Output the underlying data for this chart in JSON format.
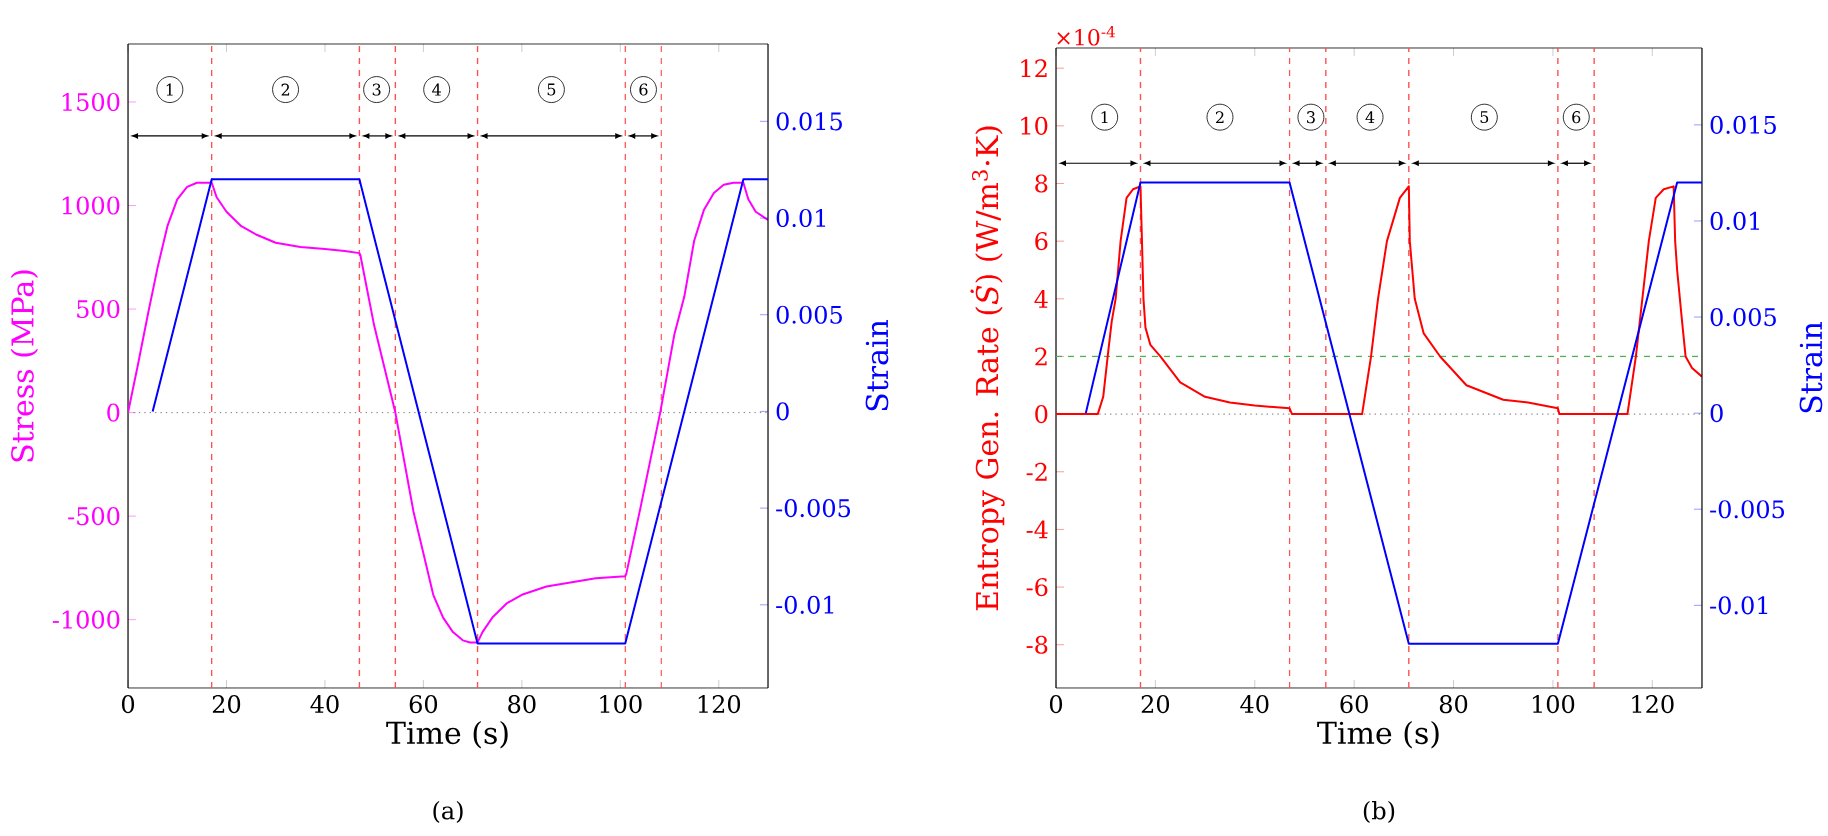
{
  "chart_data": [
    {
      "type": "line",
      "xlabel": "Time (s)",
      "ylabel": "Stress (MPa)",
      "y2label": "Strain",
      "xlim": [
        0,
        130
      ],
      "xticks": [
        0,
        20,
        40,
        60,
        80,
        100,
        120
      ],
      "ylim": [
        -1330,
        1780
      ],
      "yticks": [
        -1000,
        -500,
        0,
        500,
        1000,
        1500
      ],
      "y2lim": [
        -0.0143,
        0.019
      ],
      "y2ticks": [
        -0.01,
        -0.005,
        0,
        0.005,
        0.01,
        0.015
      ],
      "series": [
        {
          "color": "#ff00ff",
          "x": [
            0,
            2,
            4,
            6,
            8,
            10,
            12,
            14,
            16,
            17,
            18,
            20,
            23,
            26,
            30,
            35,
            40,
            44,
            47,
            47.2,
            50,
            54.3,
            58,
            62,
            64,
            66,
            68,
            69.5,
            71,
            72,
            74,
            77,
            80,
            85,
            90,
            95,
            101,
            101.2,
            104,
            108.1,
            111,
            113,
            115,
            117,
            119,
            121,
            123,
            125,
            126,
            127.5,
            130
          ],
          "values": [
            0,
            230,
            470,
            700,
            900,
            1030,
            1090,
            1110,
            1110,
            1110,
            1040,
            970,
            900,
            860,
            820,
            800,
            790,
            780,
            770,
            760,
            420,
            0,
            -480,
            -880,
            -990,
            -1060,
            -1100,
            -1110,
            -1110,
            -1060,
            -990,
            -920,
            -880,
            -840,
            -820,
            -800,
            -790,
            -780,
            -470,
            0,
            380,
            560,
            830,
            980,
            1060,
            1100,
            1110,
            1110,
            1030,
            970,
            930
          ]
        },
        {
          "color": "#0000ff",
          "axis": "y2",
          "x": [
            5,
            17,
            47,
            71,
            101,
            125,
            130
          ],
          "values": [
            0,
            0.012,
            0.012,
            -0.012,
            -0.012,
            0.012,
            0.012
          ]
        }
      ],
      "ref_lines": [
        {
          "axis": "y",
          "value": 0,
          "color": "#909090",
          "line_style": "dotted"
        },
        {
          "axis": "x",
          "value": 17,
          "color": "#ff5050",
          "line_style": "dashed"
        },
        {
          "axis": "x",
          "value": 47,
          "color": "#ff5050",
          "line_style": "dashed"
        },
        {
          "axis": "x",
          "value": 54.3,
          "color": "#ff5050",
          "line_style": "dashed"
        },
        {
          "axis": "x",
          "value": 71,
          "color": "#ff5050",
          "line_style": "dashed"
        },
        {
          "axis": "x",
          "value": 101,
          "color": "#ff5050",
          "line_style": "dashed"
        },
        {
          "axis": "x",
          "value": 108.3,
          "color": "#ff5050",
          "line_style": "dashed"
        }
      ],
      "annotations": [
        {
          "text": "1",
          "x": 8.5,
          "y": 1560
        },
        {
          "text": "2",
          "x": 32,
          "y": 1560
        },
        {
          "text": "3",
          "x": 50.5,
          "y": 1560
        },
        {
          "text": "4",
          "x": 62.7,
          "y": 1560
        },
        {
          "text": "5",
          "x": 86,
          "y": 1560
        },
        {
          "text": "6",
          "x": 104.7,
          "y": 1560
        },
        "(a)"
      ]
    },
    {
      "type": "line",
      "xlabel": "Time (s)",
      "ylabel": "Entropy Gen. Rate (*Ṡ*) (W/m$^{3}$·K)",
      "y2label": "Strain",
      "xlim": [
        0,
        130
      ],
      "xticks": [
        0,
        20,
        40,
        60,
        80,
        100,
        120
      ],
      "ylim": [
        -9.5,
        12.7
      ],
      "yticks": [
        -8,
        -6,
        -4,
        -2,
        0,
        2,
        4,
        6,
        8,
        10,
        12
      ],
      "y2lim": [
        -0.0143,
        0.019
      ],
      "y2ticks": [
        -0.01,
        -0.005,
        0,
        0.005,
        0.01,
        0.015
      ],
      "series": [
        {
          "color": "#ff0000",
          "x": [
            0,
            8.4,
            9.5,
            10.4,
            11.2,
            12,
            13,
            14.2,
            15.5,
            17,
            17.3,
            17.6,
            18,
            19,
            21,
            25,
            30,
            35,
            40,
            47,
            47.5,
            61.6,
            63.4,
            64.8,
            66.6,
            69.2,
            71,
            71.2,
            72.2,
            74,
            77.3,
            82.6,
            90,
            95,
            101,
            101.3,
            115,
            116.7,
            118,
            119.3,
            120.7,
            122.3,
            124.3,
            124.6,
            125,
            126,
            126.7,
            128,
            130
          ],
          "values": [
            0,
            0,
            0.6,
            2,
            3.2,
            4,
            6,
            7.5,
            7.8,
            7.9,
            6,
            4,
            3,
            2.4,
            2,
            1.1,
            0.6,
            0.4,
            0.3,
            0.2,
            0,
            0,
            2,
            4,
            6,
            7.5,
            7.9,
            6,
            4,
            2.8,
            2,
            1,
            0.5,
            0.4,
            0.2,
            0,
            0,
            2,
            4,
            6,
            7.5,
            7.8,
            7.9,
            6,
            5,
            3.2,
            2,
            1.6,
            1.3
          ]
        },
        {
          "color": "#0000ff",
          "axis": "y2",
          "x": [
            6,
            17,
            47,
            71,
            101,
            125,
            130
          ],
          "values": [
            0,
            0.012,
            0.012,
            -0.012,
            -0.012,
            0.012,
            0.012
          ]
        }
      ],
      "ref_lines": [
        {
          "axis": "y",
          "value": 0,
          "color": "#909090",
          "line_style": "dotted"
        },
        {
          "axis": "y",
          "value": 2,
          "color": "#4caf50",
          "line_style": "dashed"
        },
        {
          "axis": "x",
          "value": 17,
          "color": "#ff5050",
          "line_style": "dashed"
        },
        {
          "axis": "x",
          "value": 47,
          "color": "#ff5050",
          "line_style": "dashed"
        },
        {
          "axis": "x",
          "value": 54.3,
          "color": "#ff5050",
          "line_style": "dashed"
        },
        {
          "axis": "x",
          "value": 71,
          "color": "#ff5050",
          "line_style": "dashed"
        },
        {
          "axis": "x",
          "value": 101,
          "color": "#ff5050",
          "line_style": "dashed"
        },
        {
          "axis": "x",
          "value": 108.3,
          "color": "#ff5050",
          "line_style": "dashed"
        }
      ],
      "annotations": [
        "×10$^{-4}$",
        {
          "text": "1",
          "x": 9.8,
          "y": 10.3
        },
        {
          "text": "2",
          "x": 33,
          "y": 10.3
        },
        {
          "text": "3",
          "x": 51.3,
          "y": 10.3
        },
        {
          "text": "4",
          "x": 63.2,
          "y": 10.3
        },
        {
          "text": "5",
          "x": 86.2,
          "y": 10.3
        },
        {
          "text": "6",
          "x": 104.7,
          "y": 10.3
        },
        "(b)"
      ]
    }
  ]
}
